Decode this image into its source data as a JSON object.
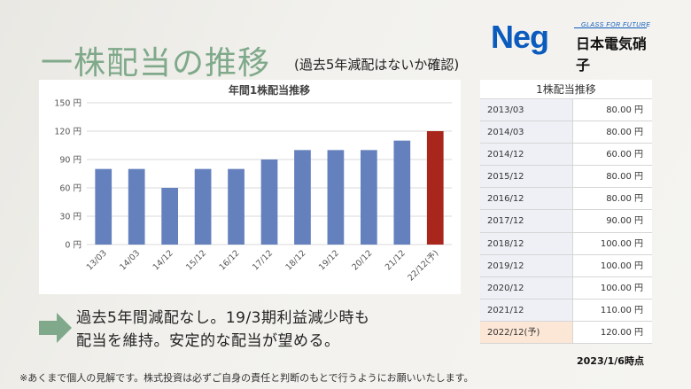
{
  "title": "一株配当の推移",
  "subtitle": "(過去5年減配はないか確認)",
  "logo": {
    "brand": "Neg",
    "tagline": "GLASS FOR FUTURE",
    "company": "日本電気硝子"
  },
  "chart_data": {
    "type": "bar",
    "title": "年間1株配当推移",
    "categories": [
      "13/03",
      "14/03",
      "14/12",
      "15/12",
      "16/12",
      "17/12",
      "18/12",
      "19/12",
      "20/12",
      "21/12",
      "22/12(予)"
    ],
    "values": [
      80,
      80,
      60,
      80,
      80,
      90,
      100,
      100,
      100,
      110,
      120
    ],
    "ylim": [
      0,
      150
    ],
    "yticks": [
      0,
      30,
      60,
      90,
      120,
      150
    ],
    "ytick_labels": [
      "0 円",
      "30 円",
      "60 円",
      "90 円",
      "120 円",
      "150 円"
    ],
    "grid": true,
    "colors": {
      "bar": "#6581bd",
      "forecast": "#a8261c",
      "grid": "#d9d9d9"
    }
  },
  "table": {
    "header": "1株配当推移",
    "rows": [
      {
        "period": "2013/03",
        "value": "80.00 円"
      },
      {
        "period": "2014/03",
        "value": "80.00 円"
      },
      {
        "period": "2014/12",
        "value": "60.00 円"
      },
      {
        "period": "2015/12",
        "value": "80.00 円"
      },
      {
        "period": "2016/12",
        "value": "80.00 円"
      },
      {
        "period": "2017/12",
        "value": "90.00 円"
      },
      {
        "period": "2018/12",
        "value": "100.00 円"
      },
      {
        "period": "2019/12",
        "value": "100.00 円"
      },
      {
        "period": "2020/12",
        "value": "100.00 円"
      },
      {
        "period": "2021/12",
        "value": "110.00 円"
      },
      {
        "period": "2022/12(予)",
        "value": "120.00 円"
      }
    ]
  },
  "comment": {
    "line1": "過去5年間減配なし。19/3期利益減少時も",
    "line2": "配当を維持。安定的な配当が望める。"
  },
  "date": "2023/1/6時点",
  "footnote": "※あくまで個人の見解です。株式投資は必ずご自身の責任と判断のもとで行うようにお願いいたします。"
}
